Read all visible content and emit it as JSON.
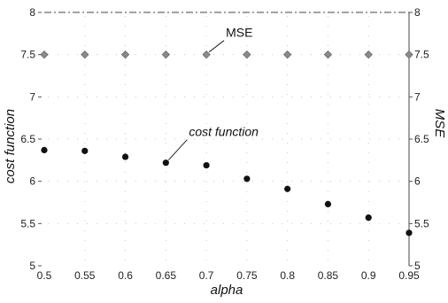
{
  "chart_data": {
    "type": "scatter",
    "x": [
      0.5,
      0.55,
      0.6,
      0.65,
      0.7,
      0.75,
      0.8,
      0.85,
      0.9,
      0.95
    ],
    "x_tick_labels": [
      "0.5",
      "0.55",
      "0.6",
      "0.65",
      "0.7",
      "0.75",
      "0.8",
      "0.85",
      "0.9",
      "0.95"
    ],
    "xlabel": "alpha",
    "xlim": [
      0.5,
      0.95
    ],
    "ylabel_left": "cost function",
    "ylim_left": [
      5,
      8
    ],
    "y_left_tick_labels": [
      "5",
      "5.5",
      "6",
      "6.5",
      "7",
      "7.5",
      "8"
    ],
    "ylabel_right": "MSE",
    "ylim_right": [
      5,
      8
    ],
    "y_right_tick_labels": [
      "5",
      "5.5",
      "6",
      "6.5",
      "7",
      "7.5",
      "8"
    ],
    "grid": true,
    "series": [
      {
        "name": "MSE",
        "axis": "right",
        "marker": "diamond",
        "color": "#8a8a8a",
        "values": [
          7.5,
          7.5,
          7.5,
          7.5,
          7.5,
          7.5,
          7.5,
          7.5,
          7.5,
          7.5
        ]
      },
      {
        "name": "cost function",
        "axis": "left",
        "marker": "circle",
        "color": "#111111",
        "values": [
          6.37,
          6.36,
          6.29,
          6.22,
          6.19,
          6.03,
          5.91,
          5.73,
          5.57,
          5.39
        ]
      }
    ],
    "annotations": [
      {
        "text": "MSE",
        "series": "MSE",
        "point_index": 4
      },
      {
        "text": "cost function",
        "series": "cost function",
        "point_index": 3
      }
    ]
  }
}
